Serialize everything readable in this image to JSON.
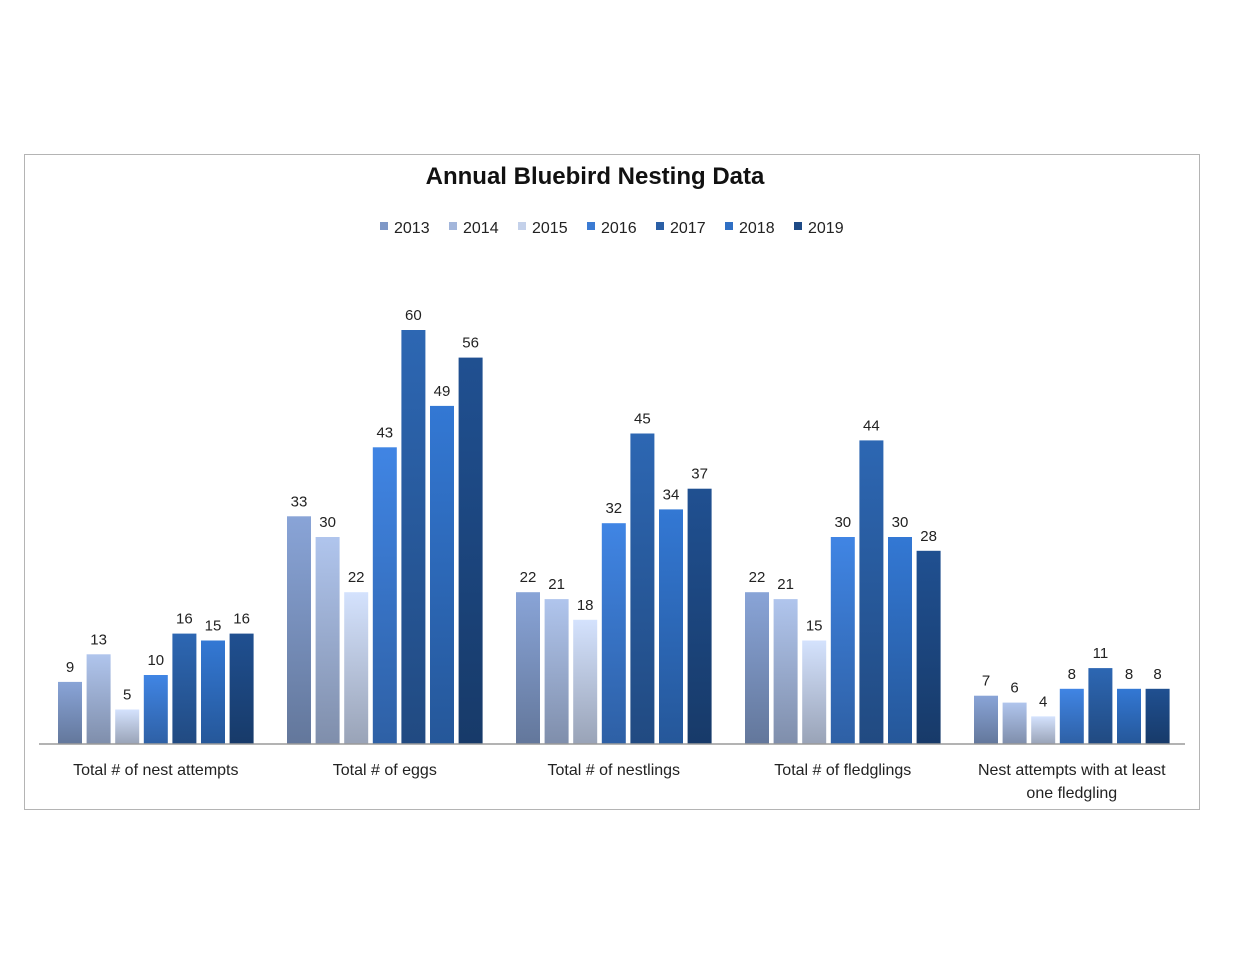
{
  "chart_data": {
    "type": "bar",
    "title": "Annual Bluebird Nesting Data",
    "xlabel": "",
    "ylabel": "",
    "ylim": [
      0,
      60
    ],
    "grid": false,
    "legend_position": "top-center",
    "categories": [
      "Total # of nest attempts",
      "Total # of eggs",
      "Total # of nestlings",
      "Total # of fledglings",
      "Nest attempts with at least one fledgling"
    ],
    "series": [
      {
        "name": "2013",
        "color": "#7f98c7",
        "values": [
          9,
          33,
          22,
          22,
          7
        ]
      },
      {
        "name": "2014",
        "color": "#a3b6db",
        "values": [
          13,
          30,
          21,
          21,
          6
        ]
      },
      {
        "name": "2015",
        "color": "#c4d1ea",
        "values": [
          5,
          22,
          18,
          15,
          4
        ]
      },
      {
        "name": "2016",
        "color": "#3b7bd3",
        "values": [
          10,
          43,
          32,
          30,
          8
        ]
      },
      {
        "name": "2017",
        "color": "#2a5fa6",
        "values": [
          16,
          60,
          45,
          44,
          11
        ]
      },
      {
        "name": "2018",
        "color": "#2f6fc4",
        "values": [
          15,
          49,
          34,
          30,
          8
        ]
      },
      {
        "name": "2019",
        "color": "#1e4a86",
        "values": [
          16,
          56,
          37,
          28,
          8
        ]
      }
    ]
  }
}
